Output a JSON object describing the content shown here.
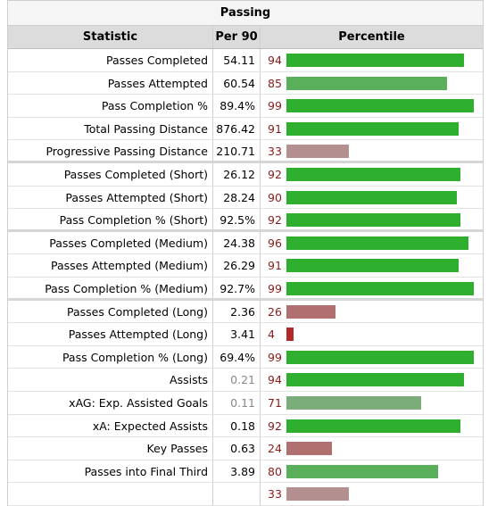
{
  "table": {
    "caption": "Passing",
    "headers": {
      "statistic": "Statistic",
      "per90": "Per 90",
      "percentile": "Percentile"
    },
    "rows": [
      {
        "stat": "Passes Completed",
        "per90": "54.11",
        "pct": 94,
        "color": "#2eb02e",
        "sep": false,
        "muted": false
      },
      {
        "stat": "Passes Attempted",
        "per90": "60.54",
        "pct": 85,
        "color": "#5ab05a",
        "sep": false,
        "muted": false
      },
      {
        "stat": "Pass Completion %",
        "per90": "89.4%",
        "pct": 99,
        "color": "#2eb02e",
        "sep": false,
        "muted": false
      },
      {
        "stat": "Total Passing Distance",
        "per90": "876.42",
        "pct": 91,
        "color": "#2eb02e",
        "sep": false,
        "muted": false
      },
      {
        "stat": "Progressive Passing Distance",
        "per90": "210.71",
        "pct": 33,
        "color": "#b48f8f",
        "sep": true,
        "muted": false
      },
      {
        "stat": "Passes Completed (Short)",
        "per90": "26.12",
        "pct": 92,
        "color": "#2eb02e",
        "sep": false,
        "muted": false
      },
      {
        "stat": "Passes Attempted (Short)",
        "per90": "28.24",
        "pct": 90,
        "color": "#2eb02e",
        "sep": false,
        "muted": false
      },
      {
        "stat": "Pass Completion % (Short)",
        "per90": "92.5%",
        "pct": 92,
        "color": "#2eb02e",
        "sep": true,
        "muted": false
      },
      {
        "stat": "Passes Completed (Medium)",
        "per90": "24.38",
        "pct": 96,
        "color": "#2eb02e",
        "sep": false,
        "muted": false
      },
      {
        "stat": "Passes Attempted (Medium)",
        "per90": "26.29",
        "pct": 91,
        "color": "#2eb02e",
        "sep": false,
        "muted": false
      },
      {
        "stat": "Pass Completion % (Medium)",
        "per90": "92.7%",
        "pct": 99,
        "color": "#2eb02e",
        "sep": true,
        "muted": false
      },
      {
        "stat": "Passes Completed (Long)",
        "per90": "2.36",
        "pct": 26,
        "color": "#b07070",
        "sep": false,
        "muted": false
      },
      {
        "stat": "Passes Attempted (Long)",
        "per90": "3.41",
        "pct": 4,
        "color": "#b02a2a",
        "sep": false,
        "muted": false
      },
      {
        "stat": "Pass Completion % (Long)",
        "per90": "69.4%",
        "pct": 99,
        "color": "#2eb02e",
        "sep": false,
        "muted": false
      },
      {
        "stat": "Assists",
        "per90": "0.21",
        "pct": 94,
        "color": "#2eb02e",
        "sep": false,
        "muted": true
      },
      {
        "stat": "xAG: Exp. Assisted Goals",
        "per90": "0.11",
        "pct": 71,
        "color": "#7aad7a",
        "sep": false,
        "muted": true
      },
      {
        "stat": "xA: Expected Assists",
        "per90": "0.18",
        "pct": 92,
        "color": "#2eb02e",
        "sep": false,
        "muted": false
      },
      {
        "stat": "Key Passes",
        "per90": "0.63",
        "pct": 24,
        "color": "#b07070",
        "sep": false,
        "muted": false
      },
      {
        "stat": "Passes into Final Third",
        "per90": "3.89",
        "pct": 80,
        "color": "#5ab05a",
        "sep": false,
        "muted": false
      },
      {
        "stat": "",
        "per90": "",
        "pct": 33,
        "color": "#b48f8f",
        "sep": false,
        "muted": false
      }
    ]
  }
}
